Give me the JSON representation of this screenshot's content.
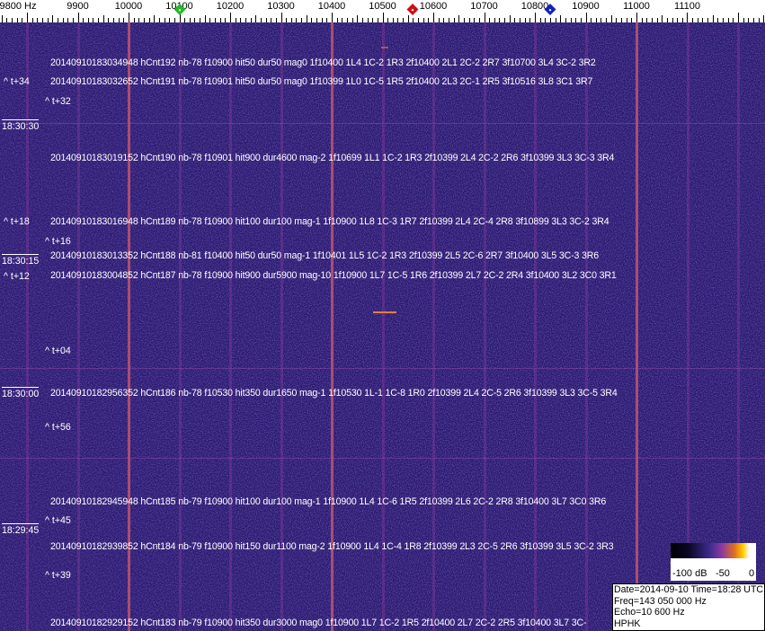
{
  "frequency_axis": {
    "unit": "Hz",
    "labels": [
      {
        "freq": 9800,
        "text": "9800 Hz"
      },
      {
        "freq": 9900,
        "text": "9900"
      },
      {
        "freq": 10000,
        "text": "10000"
      },
      {
        "freq": 10100,
        "text": "10100"
      },
      {
        "freq": 10200,
        "text": "10200"
      },
      {
        "freq": 10300,
        "text": "10300"
      },
      {
        "freq": 10400,
        "text": "10400"
      },
      {
        "freq": 10500,
        "text": "10500"
      },
      {
        "freq": 10600,
        "text": "10600"
      },
      {
        "freq": 10700,
        "text": "10700"
      },
      {
        "freq": 10800,
        "text": "10800"
      },
      {
        "freq": 10900,
        "text": "10900"
      },
      {
        "freq": 11000,
        "text": "11000"
      },
      {
        "freq": 11100,
        "text": "11100"
      }
    ],
    "markers": [
      {
        "name": "green-marker",
        "freq": 10100,
        "color": "#22bb22"
      },
      {
        "name": "red-marker",
        "freq": 10560,
        "color": "#cc1111"
      },
      {
        "name": "blue-marker",
        "freq": 10830,
        "color": "#1122bb"
      }
    ]
  },
  "waterfall": {
    "background_color": "#241a6e",
    "carrier_lines_hz": [
      10000,
      10400,
      11000
    ],
    "detections": [
      "20140910183034948 hCnt192 nb-78 f10900 hit50 dur50 mag0 1f10400 1L4 1C-2 1R3 2f10400 2L1 2C-2 2R7 3f10700 3L4 3C-2 3R2",
      "20140910183032652 hCnt191 nb-78 f10901 hit50 dur50 mag0 1f10399 1L0 1C-5 1R5 2f10400 2L3 2C-1 2R5 3f10516 3L8 3C1 3R7",
      "20140910183019152 hCnt190 nb-78 f10901 hit900 dur4600 mag-2 1f10699 1L1 1C-2 1R3 2f10399 2L4 2C-2 2R6 3f10399 3L3 3C-3 3R4",
      "20140910183016948 hCnt189 nb-78 f10900 hit100 dur100 mag-1 1f10900 1L8 1C-3 1R7 2f10399 2L4 2C-4 2R8 3f10899 3L3 3C-2 3R4",
      "20140910183013352 hCnt188 nb-81 f10400 hit50 dur50 mag-1 1f10401 1L5 1C-2 1R3 2f10399 2L5 2C-6 2R7 3f10400 3L5 3C-3 3R6",
      "20140910183004852 hCnt187 nb-78 f10900 hit900 dur5900 mag-10 1f10900 1L7 1C-5 1R6 2f10399 2L7 2C-2 2R4 3f10400 3L2 3C0 3R1",
      "20140910182956352 hCnt186 nb-78 f10530 hit350 dur1650 mag-1 1f10530 1L-1 1C-8 1R0 2f10399 2L4 2C-5 2R6 3f10399 3L3 3C-5 3R4",
      "20140910182945948 hCnt185 nb-79 f10900 hit100 dur100 mag-1 1f10900 1L4 1C-6 1R5 2f10399 2L6 2C-2 2R8 3f10400 3L7 3C0 3R6",
      "20140910182939852 hCnt184 nb-79 f10900 hit150 dur1100 mag-2 1f10900 1L4 1C-4 1R8 2f10399 2L3 2C-5 2R6 3f10399 3L5 3C-2 3R3",
      "20140910182929152 hCnt183 nb-79 f10900 hit350 dur3000 mag0 1f10900 1L7 1C-2 1R5 2f10400 2L7 2C-2 2R5 3f10400 3L7 3C-"
    ],
    "time_offsets": [
      "^ t+34",
      "^ t+32",
      "^ t+18",
      "^ t+16",
      "^ t+12",
      "^ t+04",
      "^ t+56",
      "^ t+45",
      "^ t+39"
    ],
    "time_labels": [
      "18:30:30",
      "18:30:15",
      "18:30:00",
      "18:29:45"
    ]
  },
  "colorbar": {
    "labels": [
      "-100 dB",
      "-50",
      "0"
    ]
  },
  "info_box": {
    "date_time": "Date=2014-09-10 Time=18:28 UTC",
    "freq": "Freq=143 050 000 Hz",
    "echo": "Echo=10 600 Hz",
    "station": "HPHK"
  }
}
